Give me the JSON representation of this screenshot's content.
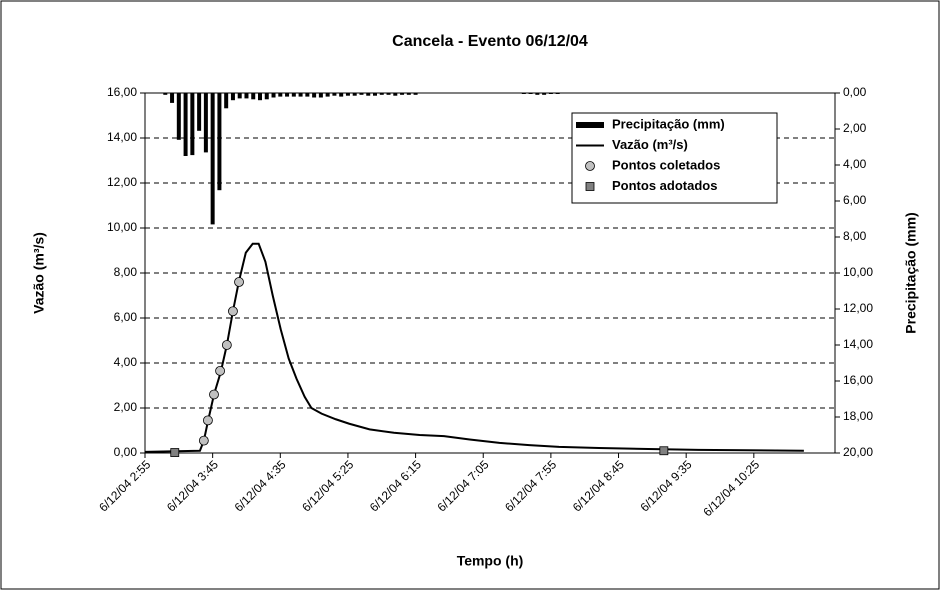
{
  "chart_data": {
    "type": "combo",
    "title": "Cancela - Evento 06/12/04",
    "x_label": "Tempo (h)",
    "y_label": "Vazão (m³/s)",
    "y2_label": "Precipitação (mm)",
    "xlim": [
      175,
      685
    ],
    "xticks": [
      {
        "value": 175,
        "label": "6/12/04 2:55"
      },
      {
        "value": 225,
        "label": "6/12/04 3:45"
      },
      {
        "value": 275,
        "label": "6/12/04 4:35"
      },
      {
        "value": 325,
        "label": "6/12/04 5:25"
      },
      {
        "value": 375,
        "label": "6/12/04 6:15"
      },
      {
        "value": 425,
        "label": "6/12/04 7:05"
      },
      {
        "value": 475,
        "label": "6/12/04 7:55"
      },
      {
        "value": 525,
        "label": "6/12/04 8:45"
      },
      {
        "value": 575,
        "label": "6/12/04 9:35"
      },
      {
        "value": 625,
        "label": "6/12/04 10:25"
      }
    ],
    "ylim": [
      0,
      16
    ],
    "yticks": [
      {
        "value": 0,
        "label": "0,00"
      },
      {
        "value": 2,
        "label": "2,00"
      },
      {
        "value": 4,
        "label": "4,00"
      },
      {
        "value": 6,
        "label": "6,00"
      },
      {
        "value": 8,
        "label": "8,00"
      },
      {
        "value": 10,
        "label": "10,00"
      },
      {
        "value": 12,
        "label": "12,00"
      },
      {
        "value": 14,
        "label": "14,00"
      },
      {
        "value": 16,
        "label": "16,00"
      }
    ],
    "y2lim": [
      0,
      20
    ],
    "y2_inverted": true,
    "y2ticks": [
      {
        "value": 0,
        "label": "0,00"
      },
      {
        "value": 2,
        "label": "2,00"
      },
      {
        "value": 4,
        "label": "4,00"
      },
      {
        "value": 6,
        "label": "6,00"
      },
      {
        "value": 8,
        "label": "8,00"
      },
      {
        "value": 10,
        "label": "10,00"
      },
      {
        "value": 12,
        "label": "12,00"
      },
      {
        "value": 14,
        "label": "14,00"
      },
      {
        "value": 16,
        "label": "16,00"
      },
      {
        "value": 18,
        "label": "18,00"
      },
      {
        "value": 20,
        "label": "20,00"
      }
    ],
    "grid": true,
    "legend": "upper right",
    "series": [
      {
        "name": "Precipitação (mm)",
        "type": "bar",
        "axis": "y2",
        "color": "#000000",
        "x": [
          190,
          195,
          200,
          205,
          210,
          215,
          220,
          225,
          230,
          235,
          240,
          245,
          250,
          255,
          260,
          265,
          270,
          275,
          280,
          285,
          290,
          295,
          300,
          305,
          310,
          315,
          320,
          325,
          330,
          335,
          340,
          345,
          350,
          355,
          360,
          365,
          370,
          375,
          455,
          460,
          465,
          470,
          475,
          480
        ],
        "values": [
          0.1,
          0.55,
          2.6,
          3.5,
          3.45,
          2.1,
          3.3,
          7.3,
          5.4,
          0.85,
          0.4,
          0.3,
          0.3,
          0.35,
          0.4,
          0.35,
          0.25,
          0.2,
          0.2,
          0.2,
          0.2,
          0.2,
          0.25,
          0.25,
          0.2,
          0.15,
          0.2,
          0.15,
          0.15,
          0.1,
          0.15,
          0.15,
          0.1,
          0.1,
          0.15,
          0.1,
          0.1,
          0.1,
          0.05,
          0.05,
          0.1,
          0.1,
          0.05,
          0.05
        ]
      },
      {
        "name": "Vazão (m³/s)",
        "type": "line",
        "color": "#000000",
        "x": [
          175,
          215.6,
          218.5,
          221.5,
          226,
          231,
          235.5,
          240,
          244.3,
          249.5,
          254.6,
          259,
          264,
          269.4,
          275.3,
          281.2,
          287,
          293,
          298,
          305.5,
          316,
          326,
          341,
          359,
          378,
          396,
          415,
          437,
          459,
          481,
          510.5,
          547,
          584,
          621,
          662
        ],
        "values": [
          0.05,
          0.1,
          0.55,
          1.4,
          2.6,
          3.6,
          4.8,
          6.3,
          7.6,
          8.9,
          9.3,
          9.3,
          8.5,
          7.0,
          5.5,
          4.2,
          3.3,
          2.5,
          2.0,
          1.75,
          1.5,
          1.3,
          1.05,
          0.9,
          0.8,
          0.75,
          0.6,
          0.45,
          0.35,
          0.27,
          0.22,
          0.18,
          0.14,
          0.12,
          0.1
        ]
      },
      {
        "name": "Pontos coletados",
        "type": "scatter",
        "marker": "circle",
        "color": "#c0c0c0",
        "x": [
          218.5,
          221.5,
          226,
          230.5,
          235.5,
          240,
          244.5
        ],
        "values": [
          0.55,
          1.45,
          2.6,
          3.65,
          4.8,
          6.3,
          7.6
        ]
      },
      {
        "name": "Pontos adotados",
        "type": "scatter",
        "marker": "square",
        "color": "#808080",
        "x": [
          197,
          558.5
        ],
        "values": [
          0.02,
          0.1
        ]
      }
    ]
  }
}
